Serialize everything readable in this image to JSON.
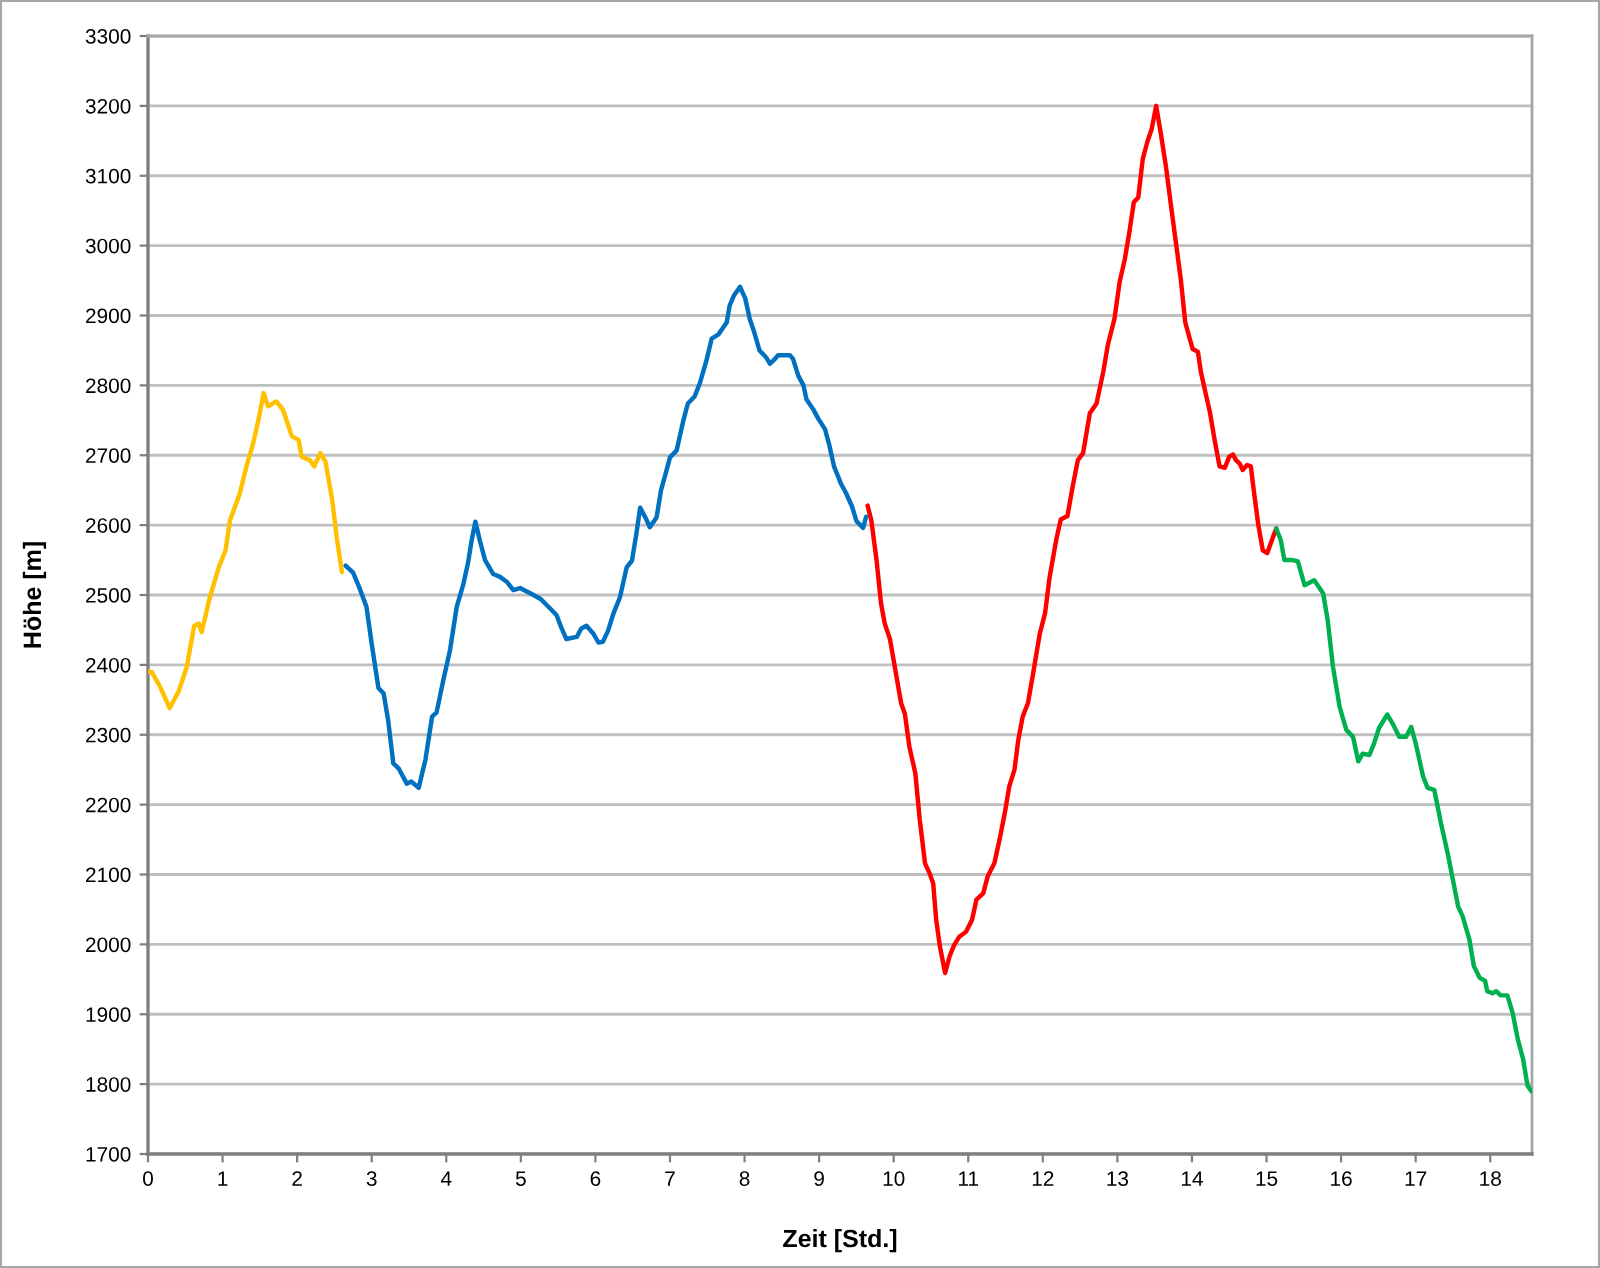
{
  "chart_data": {
    "type": "line",
    "xlabel": "Zeit [Std.]",
    "ylabel": "Höhe [m]",
    "xlim": [
      0,
      18.56
    ],
    "xticks": [
      0,
      1,
      2,
      3,
      4,
      5,
      6,
      7,
      8,
      9,
      10,
      11,
      12,
      13,
      14,
      15,
      16,
      17,
      18
    ],
    "ylim": [
      1700,
      3300
    ],
    "yticks": [
      1700,
      1800,
      1900,
      2000,
      2100,
      2200,
      2300,
      2400,
      2500,
      2600,
      2700,
      2800,
      2900,
      3000,
      3100,
      3200,
      3300
    ],
    "grid": "y",
    "series": [
      {
        "color": "#ffc000",
        "x": [
          0.0,
          0.05,
          0.16,
          0.29,
          0.41,
          0.52,
          0.62,
          0.68,
          0.72,
          0.83,
          0.95,
          1.04,
          1.1,
          1.23,
          1.32,
          1.41,
          1.48,
          1.55,
          1.61,
          1.72,
          1.81,
          1.93,
          2.02,
          2.06,
          2.17,
          2.23,
          2.31,
          2.38,
          2.47,
          2.53,
          2.6
        ],
        "values": [
          2390,
          2390,
          2369,
          2338,
          2362,
          2397,
          2456,
          2459,
          2447,
          2497,
          2540,
          2564,
          2607,
          2645,
          2684,
          2717,
          2750,
          2789,
          2770,
          2777,
          2765,
          2727,
          2722,
          2698,
          2693,
          2684,
          2703,
          2691,
          2636,
          2583,
          2533
        ]
      },
      {
        "color": "#0070c0",
        "x": [
          2.65,
          2.75,
          2.84,
          2.93,
          3.0,
          3.09,
          3.16,
          3.22,
          3.29,
          3.36,
          3.47,
          3.53,
          3.63,
          3.72,
          3.81,
          3.87,
          3.96,
          4.05,
          4.14,
          4.23,
          4.29,
          4.34,
          4.39,
          4.45,
          4.52,
          4.63,
          4.72,
          4.81,
          4.9,
          4.99,
          5.17,
          5.27,
          5.39,
          5.48,
          5.54,
          5.61,
          5.75,
          5.81,
          5.88,
          5.97,
          6.04,
          6.1,
          6.17,
          6.24,
          6.33,
          6.42,
          6.49,
          6.55,
          6.6,
          6.67,
          6.73,
          6.82,
          6.88,
          6.94,
          7.0,
          7.09,
          7.18,
          7.24,
          7.33,
          7.4,
          7.49,
          7.56,
          7.65,
          7.76,
          7.8,
          7.86,
          7.94,
          8.01,
          8.07,
          8.13,
          8.2,
          8.29,
          8.34,
          8.4,
          8.45,
          8.61,
          8.65,
          8.72,
          8.79,
          8.83,
          8.92,
          8.99,
          9.08,
          9.14,
          9.2,
          9.29,
          9.36,
          9.44,
          9.5,
          9.59,
          9.63
        ],
        "values": [
          2542,
          2532,
          2509,
          2483,
          2430,
          2367,
          2359,
          2321,
          2259,
          2252,
          2230,
          2233,
          2224,
          2264,
          2326,
          2332,
          2378,
          2421,
          2483,
          2516,
          2545,
          2578,
          2605,
          2578,
          2550,
          2530,
          2526,
          2519,
          2507,
          2510,
          2500,
          2494,
          2481,
          2471,
          2454,
          2437,
          2440,
          2452,
          2456,
          2445,
          2432,
          2433,
          2449,
          2473,
          2497,
          2540,
          2549,
          2588,
          2625,
          2611,
          2597,
          2611,
          2650,
          2673,
          2697,
          2707,
          2750,
          2774,
          2784,
          2803,
          2836,
          2867,
          2873,
          2890,
          2914,
          2929,
          2941,
          2924,
          2895,
          2876,
          2850,
          2840,
          2831,
          2837,
          2843,
          2843,
          2838,
          2814,
          2800,
          2780,
          2766,
          2752,
          2737,
          2713,
          2684,
          2660,
          2646,
          2627,
          2606,
          2596,
          2612
        ]
      },
      {
        "color": "#ff0000",
        "x": [
          9.65,
          9.7,
          9.77,
          9.83,
          9.88,
          9.95,
          10.03,
          10.1,
          10.15,
          10.21,
          10.29,
          10.35,
          10.42,
          10.48,
          10.53,
          10.57,
          10.62,
          10.69,
          10.75,
          10.81,
          10.88,
          10.97,
          11.05,
          11.11,
          11.2,
          11.26,
          11.35,
          11.42,
          11.49,
          11.55,
          11.62,
          11.67,
          11.73,
          11.8,
          11.87,
          11.96,
          12.03,
          12.09,
          12.18,
          12.24,
          12.33,
          12.4,
          12.47,
          12.54,
          12.63,
          12.72,
          12.81,
          12.87,
          12.96,
          13.03,
          13.1,
          13.16,
          13.22,
          13.28,
          13.34,
          13.4,
          13.46,
          13.52,
          13.58,
          13.65,
          13.73,
          13.79,
          13.85,
          13.91,
          13.97,
          14.01,
          14.08,
          14.12,
          14.17,
          14.24,
          14.3,
          14.37,
          14.44,
          14.5,
          14.55,
          14.59,
          14.64,
          14.68,
          14.74,
          14.79,
          14.82,
          14.89,
          14.95,
          15.01,
          15.08,
          15.13
        ],
        "values": [
          2628,
          2607,
          2550,
          2488,
          2459,
          2437,
          2388,
          2345,
          2330,
          2283,
          2245,
          2178,
          2116,
          2102,
          2087,
          2035,
          1997,
          1959,
          1983,
          1999,
          2011,
          2018,
          2035,
          2064,
          2073,
          2097,
          2116,
          2150,
          2188,
          2226,
          2250,
          2292,
          2326,
          2345,
          2388,
          2445,
          2474,
          2525,
          2579,
          2608,
          2613,
          2655,
          2693,
          2703,
          2760,
          2774,
          2819,
          2857,
          2895,
          2948,
          2981,
          3019,
          3062,
          3069,
          3124,
          3148,
          3167,
          3200,
          3162,
          3114,
          3048,
          3000,
          2952,
          2890,
          2867,
          2852,
          2848,
          2819,
          2795,
          2762,
          2724,
          2684,
          2682,
          2698,
          2701,
          2693,
          2688,
          2679,
          2686,
          2684,
          2657,
          2600,
          2564,
          2560,
          2581,
          2595
        ]
      },
      {
        "color": "#00b050",
        "x": [
          15.13,
          15.19,
          15.24,
          15.35,
          15.42,
          15.51,
          15.64,
          15.76,
          15.82,
          15.89,
          15.98,
          16.07,
          16.16,
          16.23,
          16.29,
          16.38,
          16.44,
          16.51,
          16.62,
          16.69,
          16.78,
          16.87,
          16.94,
          17.0,
          17.1,
          17.16,
          17.25,
          17.34,
          17.43,
          17.5,
          17.57,
          17.63,
          17.72,
          17.78,
          17.86,
          17.93,
          17.96,
          18.03,
          18.08,
          18.14,
          18.23,
          18.3,
          18.37,
          18.44,
          18.5,
          18.55
        ],
        "values": [
          2595,
          2579,
          2550,
          2550,
          2548,
          2514,
          2521,
          2502,
          2464,
          2398,
          2340,
          2307,
          2297,
          2262,
          2273,
          2271,
          2287,
          2310,
          2329,
          2316,
          2297,
          2297,
          2311,
          2288,
          2240,
          2224,
          2221,
          2173,
          2130,
          2092,
          2054,
          2040,
          2007,
          1969,
          1952,
          1948,
          1933,
          1930,
          1933,
          1927,
          1927,
          1902,
          1864,
          1836,
          1798,
          1790
        ]
      }
    ]
  }
}
